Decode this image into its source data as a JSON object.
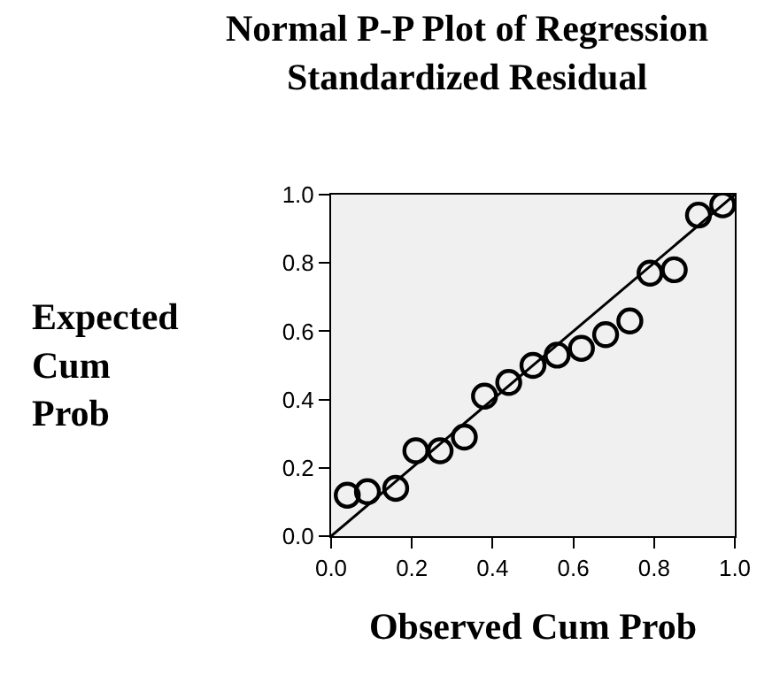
{
  "chart_data": {
    "type": "scatter",
    "title": "Normal P-P Plot of Regression\nStandardized Residual",
    "xlabel": "Observed Cum Prob",
    "ylabel": "Expected\nCum\nProb",
    "xlim": [
      0,
      1
    ],
    "ylim": [
      0,
      1
    ],
    "xticks": [
      {
        "value": 0,
        "label": "0.0"
      },
      0.2,
      0.4,
      0.6,
      0.8,
      {
        "value": 1,
        "label": "1.0"
      }
    ],
    "yticks": [
      {
        "value": 0,
        "label": "0.0"
      },
      0.2,
      0.4,
      0.6,
      0.8,
      {
        "value": 1,
        "label": "1.0"
      }
    ],
    "grid": false,
    "marker": "circle",
    "series": [
      {
        "color": "#000000",
        "x": [
          0.04,
          0.09,
          0.16,
          0.21,
          0.27,
          0.33,
          0.38,
          0.44,
          0.5,
          0.56,
          0.62,
          0.68,
          0.74,
          0.79,
          0.85,
          0.91,
          0.97
        ],
        "values": [
          0.12,
          0.13,
          0.14,
          0.25,
          0.25,
          0.29,
          0.41,
          0.45,
          0.5,
          0.53,
          0.55,
          0.59,
          0.63,
          0.77,
          0.78,
          0.94,
          0.97
        ]
      },
      {
        "type": "line",
        "marker": "none",
        "color": "#000000",
        "x": [
          0,
          1
        ],
        "values": [
          0,
          1
        ]
      }
    ]
  }
}
